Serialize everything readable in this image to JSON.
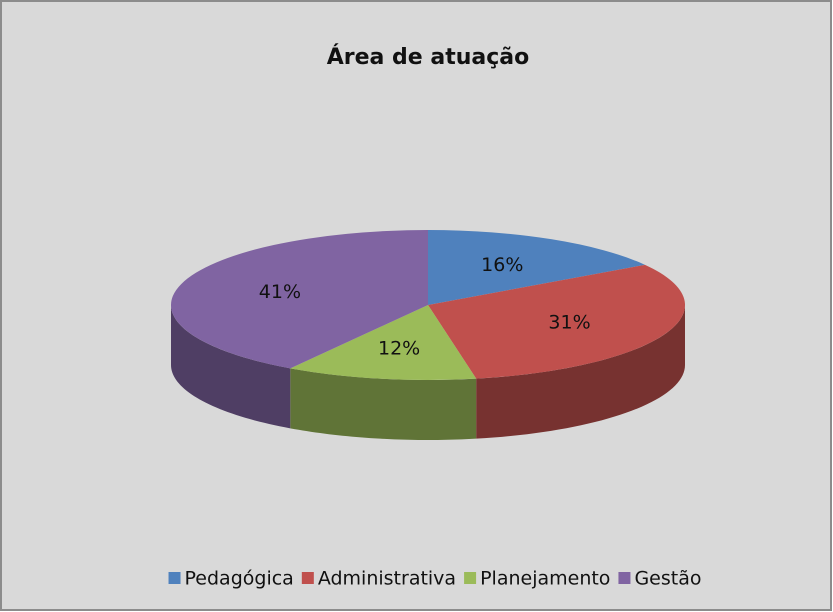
{
  "chart_data": {
    "type": "pie3d",
    "title": "Área de atuação",
    "categories": [
      "Pedagógica",
      "Administrativa",
      "Planejamento",
      "Gestão"
    ],
    "values": [
      16,
      31,
      12,
      41
    ],
    "value_labels": [
      "16%",
      "31%",
      "12%",
      "41%"
    ],
    "colors": [
      "#4f81bd",
      "#c0504d",
      "#9bbb59",
      "#8064a2"
    ],
    "legend": "bottom"
  }
}
